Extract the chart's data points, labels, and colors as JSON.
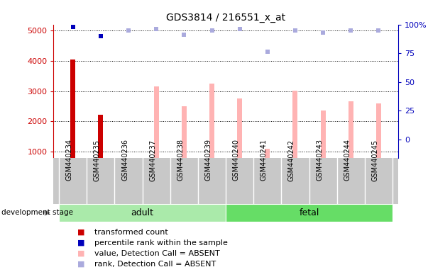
{
  "title": "GDS3814 / 216551_x_at",
  "samples": [
    "GSM440234",
    "GSM440235",
    "GSM440236",
    "GSM440237",
    "GSM440238",
    "GSM440239",
    "GSM440240",
    "GSM440241",
    "GSM440242",
    "GSM440243",
    "GSM440244",
    "GSM440245"
  ],
  "bar_values": [
    4050,
    2230,
    null,
    3150,
    2500,
    3250,
    2750,
    1100,
    3020,
    2350,
    2660,
    2600
  ],
  "bar_is_dark": [
    true,
    true,
    false,
    false,
    false,
    false,
    false,
    false,
    false,
    false,
    false,
    false
  ],
  "bar_color_dark": "#cc0000",
  "bar_color_light": "#ffb3b3",
  "rank_dots": [
    98,
    90,
    95,
    96,
    91,
    95,
    96,
    76,
    95,
    93,
    95,
    95
  ],
  "rank_color_dark": "#0000bb",
  "rank_color_light": "#aaaadd",
  "rank_is_dark": [
    true,
    true,
    false,
    false,
    false,
    false,
    false,
    false,
    false,
    false,
    false,
    false
  ],
  "groups": [
    {
      "label": "adult",
      "start": 0,
      "end": 5,
      "color": "#aaeaaa"
    },
    {
      "label": "fetal",
      "start": 6,
      "end": 11,
      "color": "#66dd66"
    }
  ],
  "ylim_left": [
    800,
    5200
  ],
  "ylim_right": [
    -16,
    100
  ],
  "yticks_left": [
    1000,
    2000,
    3000,
    4000,
    5000
  ],
  "ytick_labels_left": [
    "1000",
    "2000",
    "3000",
    "4000",
    "5000"
  ],
  "yticks_right": [
    0,
    25,
    50,
    75,
    100
  ],
  "ytick_labels_right": [
    "0",
    "25",
    "50",
    "75",
    "100%"
  ],
  "left_color": "#cc0000",
  "right_color": "#0000bb",
  "background_color": "#ffffff",
  "sample_bg_color": "#c8c8c8",
  "figsize": [
    6.03,
    3.84
  ],
  "dpi": 100,
  "legend_items": [
    {
      "color": "#cc0000",
      "label": "transformed count"
    },
    {
      "color": "#0000bb",
      "label": "percentile rank within the sample"
    },
    {
      "color": "#ffb3b3",
      "label": "value, Detection Call = ABSENT"
    },
    {
      "color": "#aaaadd",
      "label": "rank, Detection Call = ABSENT"
    }
  ]
}
